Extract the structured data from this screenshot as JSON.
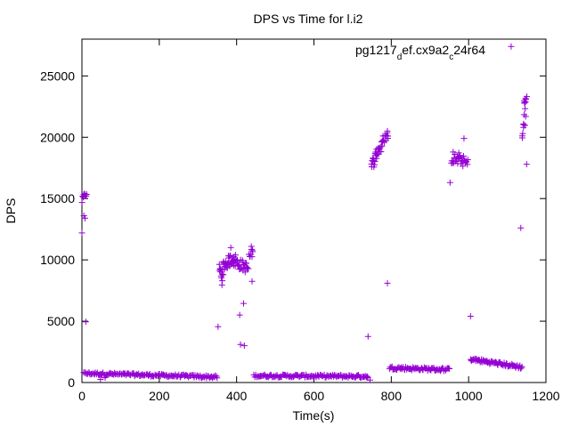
{
  "chart_data": {
    "type": "scatter",
    "title": "DPS vs Time for l.i2",
    "xlabel": "Time(s)",
    "ylabel": "DPS",
    "xlim": [
      0,
      1200
    ],
    "ylim": [
      0,
      28000
    ],
    "x_ticks": [
      0,
      200,
      400,
      600,
      800,
      1000,
      1200
    ],
    "y_ticks": [
      0,
      5000,
      10000,
      15000,
      20000,
      25000
    ],
    "grid": false,
    "legend_position": "top-right",
    "marker": "+",
    "legend": {
      "text_parts": [
        {
          "text": "pg1217",
          "sub": false
        },
        {
          "text": "d",
          "sub": true
        },
        {
          "text": "ef.cx9a2",
          "sub": false
        },
        {
          "text": "c",
          "sub": true
        },
        {
          "text": "24r64",
          "sub": false
        }
      ]
    },
    "series": [
      {
        "color": "#9400d3",
        "segments": [
          {
            "x0": 0,
            "x1": 12,
            "n": 8,
            "y0": 14800,
            "y1": 15500,
            "noise": 300
          },
          {
            "x0": 5,
            "x1": 350,
            "n": 140,
            "y0": 750,
            "y1": 450,
            "noise": 110
          },
          {
            "x0": 355,
            "x1": 365,
            "n": 12,
            "y0": 9200,
            "y1": 8700,
            "noise": 500
          },
          {
            "x0": 365,
            "x1": 392,
            "n": 25,
            "y0": 9500,
            "y1": 10200,
            "noise": 500
          },
          {
            "x0": 392,
            "x1": 430,
            "n": 30,
            "y0": 9900,
            "y1": 9300,
            "noise": 450
          },
          {
            "x0": 432,
            "x1": 442,
            "n": 8,
            "y0": 10200,
            "y1": 10700,
            "noise": 400
          },
          {
            "x0": 445,
            "x1": 740,
            "n": 120,
            "y0": 550,
            "y1": 500,
            "noise": 110
          },
          {
            "x0": 748,
            "x1": 762,
            "n": 14,
            "y0": 17600,
            "y1": 18600,
            "noise": 500
          },
          {
            "x0": 762,
            "x1": 778,
            "n": 14,
            "y0": 18800,
            "y1": 19300,
            "noise": 500
          },
          {
            "x0": 778,
            "x1": 792,
            "n": 12,
            "y0": 19800,
            "y1": 20200,
            "noise": 350
          },
          {
            "x0": 795,
            "x1": 950,
            "n": 70,
            "y0": 1200,
            "y1": 1050,
            "noise": 130
          },
          {
            "x0": 955,
            "x1": 975,
            "n": 14,
            "y0": 18300,
            "y1": 18100,
            "noise": 450
          },
          {
            "x0": 975,
            "x1": 998,
            "n": 16,
            "y0": 18300,
            "y1": 17800,
            "noise": 450
          },
          {
            "x0": 1005,
            "x1": 1138,
            "n": 70,
            "y0": 1900,
            "y1": 1250,
            "noise": 140
          },
          {
            "x0": 1138,
            "x1": 1147,
            "n": 10,
            "y0": 20000,
            "y1": 22000,
            "noise": 700
          },
          {
            "x0": 1143,
            "x1": 1150,
            "n": 7,
            "y0": 22800,
            "y1": 23300,
            "noise": 300
          }
        ],
        "points": [
          [
            0,
            12200
          ],
          [
            5,
            13600
          ],
          [
            8,
            13400
          ],
          [
            10,
            4950
          ],
          [
            48,
            250
          ],
          [
            52,
            600
          ],
          [
            60,
            400
          ],
          [
            352,
            4550
          ],
          [
            362,
            7950
          ],
          [
            385,
            11000
          ],
          [
            397,
            10400
          ],
          [
            408,
            5500
          ],
          [
            410,
            3100
          ],
          [
            418,
            6450
          ],
          [
            420,
            3000
          ],
          [
            438,
            11100
          ],
          [
            440,
            8250
          ],
          [
            740,
            3750
          ],
          [
            745,
            200
          ],
          [
            790,
            20500
          ],
          [
            790,
            8100
          ],
          [
            952,
            16300
          ],
          [
            960,
            18800
          ],
          [
            988,
            19900
          ],
          [
            1005,
            5400
          ],
          [
            1135,
            12600
          ],
          [
            1150,
            17800
          ]
        ]
      }
    ],
    "legend_marker": [
      1110,
      27400
    ]
  }
}
